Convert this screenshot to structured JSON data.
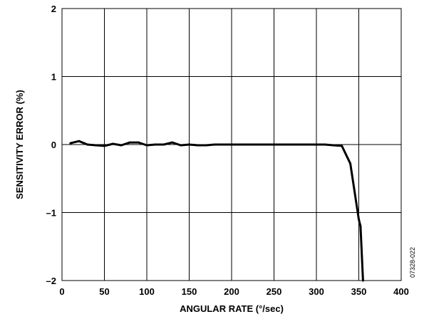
{
  "chart_data": {
    "type": "line",
    "title": "",
    "xlabel": "ANGULAR RATE (°/sec)",
    "ylabel": "SENSITIVITY ERROR (%)",
    "xlim": [
      0,
      400
    ],
    "ylim": [
      -2,
      2
    ],
    "xticks": [
      0,
      50,
      100,
      150,
      200,
      250,
      300,
      350,
      400
    ],
    "yticks": [
      -2,
      -1,
      0,
      1,
      2
    ],
    "ytick_labels": [
      "–2",
      "–1",
      "0",
      "1",
      "2"
    ],
    "grid": true,
    "series": [
      {
        "x": [
          10,
          20,
          30,
          40,
          50,
          60,
          70,
          80,
          90,
          100,
          110,
          120,
          130,
          140,
          150,
          160,
          170,
          180,
          190,
          200,
          210,
          220,
          230,
          240,
          250,
          260,
          270,
          280,
          290,
          300,
          310,
          320,
          330,
          340,
          350,
          352,
          355
        ],
        "y": [
          0.02,
          0.05,
          0.0,
          -0.01,
          -0.02,
          0.01,
          -0.01,
          0.03,
          0.03,
          -0.01,
          0.0,
          0.0,
          0.03,
          -0.01,
          0.0,
          -0.01,
          -0.01,
          0.0,
          0.0,
          0.0,
          0.0,
          0.0,
          0.0,
          0.0,
          0.0,
          0.0,
          0.0,
          0.0,
          0.0,
          0.0,
          0.0,
          -0.01,
          -0.02,
          -0.28,
          -1.1,
          -1.2,
          -2.0
        ]
      }
    ],
    "annotation": "07328-022"
  }
}
